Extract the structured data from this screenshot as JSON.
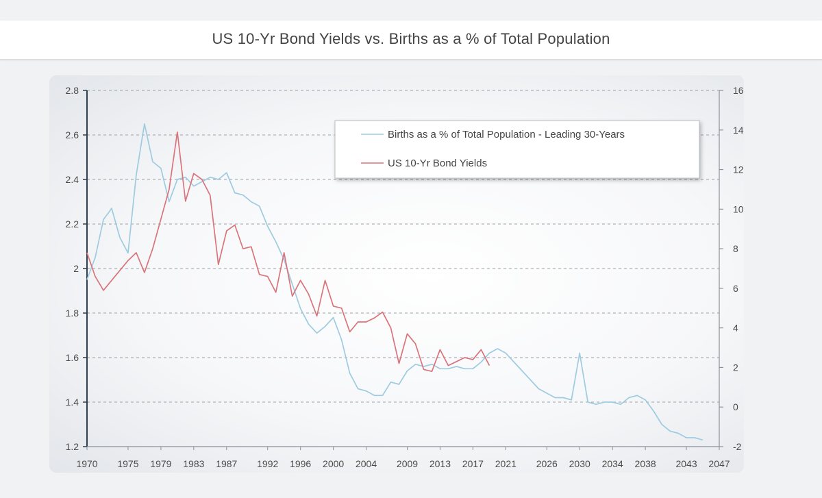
{
  "header": {
    "title": "US 10-Yr Bond Yields vs. Births as a % of Total Population"
  },
  "chart_data": {
    "type": "line",
    "title": "US 10-Yr Bond Yields vs. Births as a % of Total Population",
    "xlabel": "",
    "ylabel_left": "",
    "ylabel_right": "",
    "x_ticks": [
      "1970",
      "1975",
      "1979",
      "1983",
      "1987",
      "1992",
      "1996",
      "2000",
      "2004",
      "2009",
      "2013",
      "2017",
      "2021",
      "2026",
      "2030",
      "2034",
      "2038",
      "2043",
      "2047"
    ],
    "y_left_ticks": [
      "2.8",
      "2.6",
      "2.4",
      "2.2",
      "2",
      "1.8",
      "1.6",
      "1.4",
      "1.2"
    ],
    "y_right_ticks": [
      "16",
      "14",
      "12",
      "10",
      "8",
      "6",
      "4",
      "2",
      "0",
      "-2"
    ],
    "ylim_left": [
      1.2,
      2.8
    ],
    "ylim_right": [
      -2,
      16
    ],
    "xlim": [
      1970,
      2047
    ],
    "grid": "horizontal-dashed",
    "legend_position": "top-right",
    "colors": {
      "births": "#9ecbe0",
      "yields": "#d9747b",
      "grid": "#9aa0a6",
      "axis": "#2f3f4f"
    },
    "series": [
      {
        "name": "Births as a % of Total Population - Leading 30-Years",
        "axis": "left",
        "x": [
          1970,
          1971,
          1972,
          1973,
          1974,
          1975,
          1976,
          1977,
          1978,
          1979,
          1980,
          1981,
          1982,
          1983,
          1984,
          1985,
          1986,
          1987,
          1988,
          1989,
          1990,
          1991,
          1992,
          1993,
          1994,
          1995,
          1996,
          1997,
          1998,
          1999,
          2000,
          2001,
          2002,
          2003,
          2004,
          2005,
          2006,
          2007,
          2008,
          2009,
          2010,
          2011,
          2012,
          2013,
          2014,
          2015,
          2016,
          2017,
          2018,
          2019,
          2020,
          2021,
          2022,
          2023,
          2024,
          2025,
          2026,
          2027,
          2028,
          2029,
          2030,
          2031,
          2032,
          2033,
          2034,
          2035,
          2036,
          2037,
          2038,
          2039,
          2040,
          2041,
          2042,
          2043,
          2044,
          2045
        ],
        "values": [
          1.95,
          2.05,
          2.22,
          2.27,
          2.14,
          2.07,
          2.42,
          2.65,
          2.48,
          2.45,
          2.3,
          2.4,
          2.41,
          2.37,
          2.39,
          2.41,
          2.4,
          2.43,
          2.34,
          2.33,
          2.3,
          2.28,
          2.19,
          2.12,
          2.04,
          1.93,
          1.82,
          1.75,
          1.71,
          1.74,
          1.78,
          1.68,
          1.53,
          1.46,
          1.45,
          1.43,
          1.43,
          1.49,
          1.48,
          1.54,
          1.57,
          1.56,
          1.57,
          1.55,
          1.55,
          1.56,
          1.55,
          1.55,
          1.58,
          1.62,
          1.64,
          1.62,
          1.58,
          1.54,
          1.5,
          1.46,
          1.44,
          1.42,
          1.42,
          1.41,
          1.62,
          1.4,
          1.39,
          1.4,
          1.4,
          1.39,
          1.42,
          1.43,
          1.41,
          1.36,
          1.3,
          1.27,
          1.26,
          1.24,
          1.24,
          1.23
        ]
      },
      {
        "name": "US 10-Yr Bond Yields",
        "axis": "right",
        "x": [
          1970,
          1971,
          1972,
          1973,
          1974,
          1975,
          1976,
          1977,
          1978,
          1979,
          1980,
          1981,
          1982,
          1983,
          1984,
          1985,
          1986,
          1987,
          1988,
          1989,
          1990,
          1991,
          1992,
          1993,
          1994,
          1995,
          1996,
          1997,
          1998,
          1999,
          2000,
          2001,
          2002,
          2003,
          2004,
          2005,
          2006,
          2007,
          2008,
          2009,
          2010,
          2011,
          2012,
          2013,
          2014,
          2015,
          2016,
          2017,
          2018,
          2019
        ],
        "values": [
          7.8,
          6.6,
          5.9,
          6.4,
          6.9,
          7.4,
          7.8,
          6.8,
          8.0,
          9.5,
          11.0,
          13.9,
          10.4,
          11.8,
          11.5,
          10.7,
          7.2,
          8.9,
          9.2,
          8.0,
          8.1,
          6.7,
          6.6,
          5.8,
          7.8,
          5.6,
          6.4,
          5.7,
          4.6,
          6.4,
          5.1,
          5.0,
          3.8,
          4.3,
          4.3,
          4.5,
          4.8,
          4.0,
          2.2,
          3.7,
          3.2,
          1.9,
          1.8,
          2.9,
          2.1,
          2.3,
          2.5,
          2.4,
          2.9,
          2.1
        ]
      }
    ]
  }
}
